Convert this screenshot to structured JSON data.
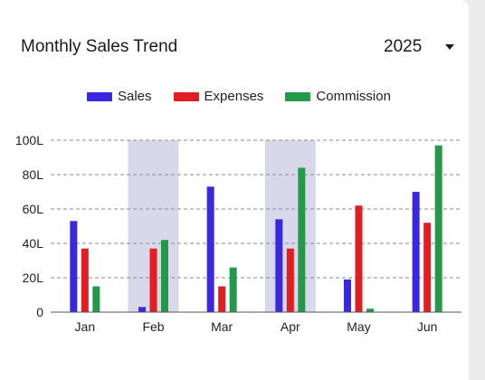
{
  "header": {
    "title": "Monthly Sales Trend",
    "year": "2025",
    "dropdown_icon": "caret-down-icon"
  },
  "chart_data": {
    "type": "bar",
    "title": "Monthly Sales Trend",
    "categories": [
      "Jan",
      "Feb",
      "Mar",
      "Apr",
      "May",
      "Jun"
    ],
    "series": [
      {
        "name": "Sales",
        "color": "#3a27e0",
        "values": [
          53,
          3,
          73,
          54,
          19,
          70
        ]
      },
      {
        "name": "Expenses",
        "color": "#e01e24",
        "values": [
          37,
          37,
          15,
          37,
          62,
          52
        ]
      },
      {
        "name": "Commission",
        "color": "#239a4a",
        "values": [
          15,
          42,
          26,
          84,
          2,
          97
        ]
      }
    ],
    "ylim": [
      0,
      100
    ],
    "yticks": [
      0,
      20,
      40,
      60,
      80,
      100
    ],
    "ytick_labels": [
      "0",
      "20L",
      "40L",
      "60L",
      "80L",
      "100L"
    ],
    "highlighted_categories": [
      "Feb",
      "Apr"
    ],
    "highlight_color": "#d9d7ea",
    "grid": true,
    "legend_position": "top-center",
    "xlabel": "",
    "ylabel": ""
  }
}
